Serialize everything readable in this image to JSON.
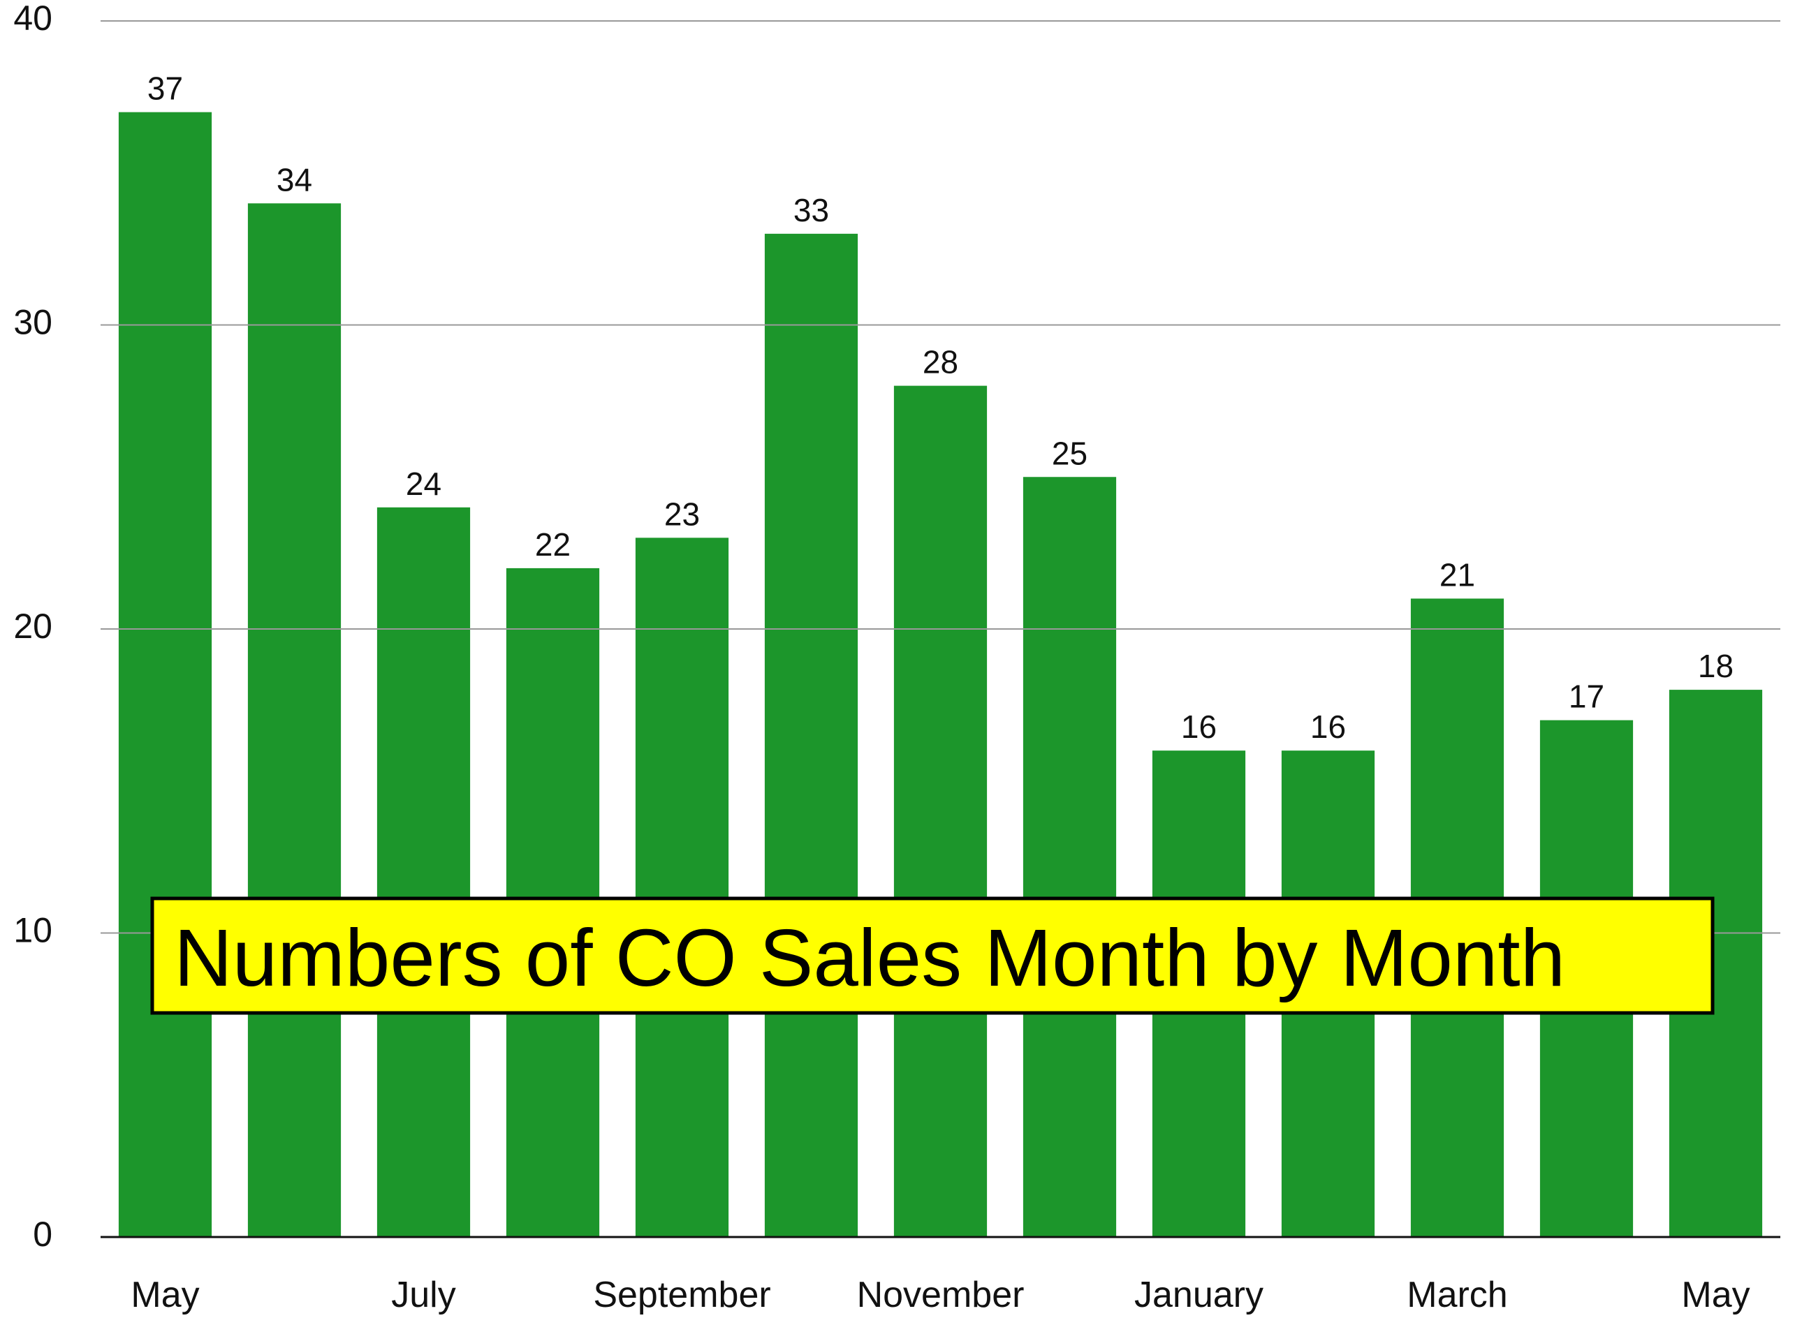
{
  "chart_data": {
    "type": "bar",
    "title": "Numbers of CO Sales Month by Month",
    "categories": [
      "May",
      null,
      "July",
      null,
      "September",
      null,
      "November",
      null,
      "January",
      null,
      "March",
      null,
      "May"
    ],
    "values": [
      37,
      34,
      24,
      22,
      23,
      33,
      28,
      25,
      16,
      16,
      21,
      17,
      18
    ],
    "color": "#1c962b",
    "ylim": [
      0,
      40
    ],
    "yticks": [
      0,
      10,
      20,
      30,
      40
    ],
    "grid": true
  }
}
